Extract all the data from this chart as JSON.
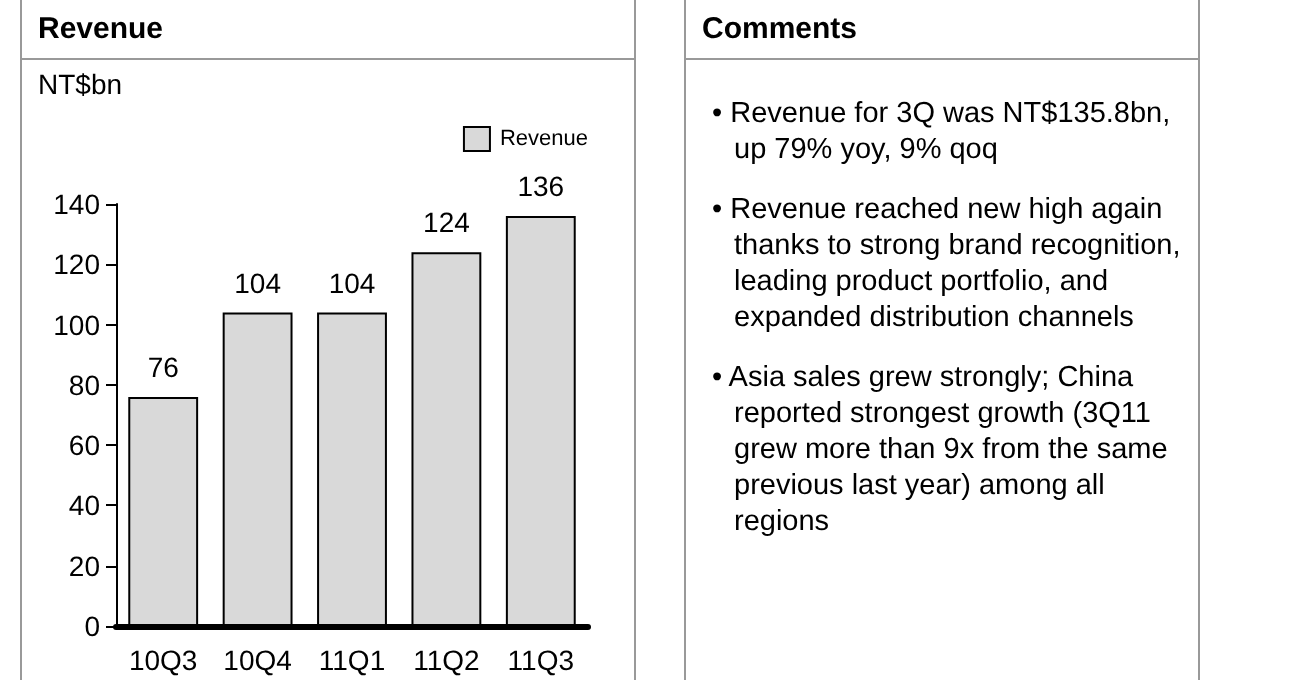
{
  "chart_data": [
    {
      "type": "bar",
      "title": "Revenue",
      "ylabel": "NT$bn",
      "categories": [
        "10Q3",
        "10Q4",
        "11Q1",
        "11Q2",
        "11Q3"
      ],
      "series": [
        {
          "name": "Revenue",
          "color": "#d9d9d9",
          "values": [
            76,
            104,
            104,
            124,
            136
          ]
        }
      ],
      "ylim": [
        0,
        140
      ],
      "yticks": [
        0,
        20,
        40,
        60,
        80,
        100,
        120,
        140
      ],
      "grid": false,
      "legend": "top right",
      "data_labels": true
    },
    {
      "type": "other",
      "title": "Comments",
      "annotations": [
        "• Revenue for 3Q was NT$135.8bn, up 79% yoy, 9% qoq",
        "• Revenue reached new high again thanks to strong brand recognition, leading product portfolio, and expanded distribution channels",
        "• Asia sales grew strongly; China reported strongest growth (3Q11 grew more than 9x from the same previous last year) among all regions"
      ]
    }
  ]
}
